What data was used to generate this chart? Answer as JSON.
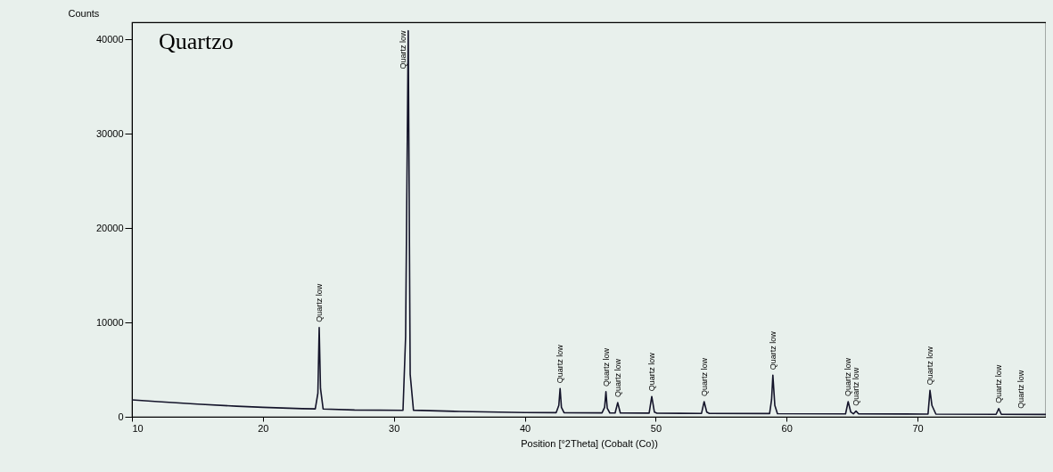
{
  "chart_data": {
    "type": "line",
    "ylabel": "Counts",
    "xlabel": "Position [°2Theta] (Cobalt (Co))",
    "xlim": [
      10,
      79.8
    ],
    "xticks": [
      10,
      20,
      30,
      40,
      50,
      60,
      70
    ],
    "ylim": [
      0,
      41800
    ],
    "yticks": [
      0,
      10000,
      20000,
      30000,
      40000
    ],
    "grid": false,
    "marker": "none",
    "line_style": "solid",
    "series": [
      {
        "color": "#14142a",
        "x": [
          10,
          12,
          15,
          18,
          20,
          23,
          24.0,
          24.2,
          24.3,
          24.4,
          24.6,
          27,
          30.7,
          30.9,
          31.1,
          31.25,
          31.5,
          35,
          40,
          42.4,
          42.6,
          42.7,
          42.8,
          43.0,
          45.9,
          46.1,
          46.2,
          46.3,
          46.5,
          46.9,
          47.1,
          47.3,
          49.5,
          49.7,
          49.9,
          50.1,
          53.5,
          53.7,
          53.9,
          54.1,
          58.7,
          58.85,
          58.95,
          59.1,
          59.3,
          64.5,
          64.7,
          64.9,
          65.1,
          65.3,
          65.5,
          70.8,
          70.95,
          71.1,
          71.4,
          76.0,
          76.2,
          76.4,
          79.8
        ],
        "values": [
          1800,
          1600,
          1350,
          1120,
          1000,
          860,
          840,
          2500,
          9460,
          3000,
          830,
          720,
          680,
          8500,
          40900,
          4500,
          700,
          560,
          450,
          440,
          1200,
          3000,
          1000,
          430,
          410,
          1000,
          2650,
          900,
          400,
          400,
          1500,
          400,
          390,
          2150,
          500,
          380,
          360,
          1600,
          500,
          350,
          340,
          1800,
          4400,
          1200,
          330,
          310,
          1600,
          500,
          310,
          600,
          300,
          290,
          2800,
          1200,
          280,
          260,
          870,
          260,
          250
        ]
      }
    ],
    "annotations": [
      "Quartzo",
      {
        "text": "Quartz low",
        "x": 24.3,
        "y": 9460
      },
      {
        "text": "Quartz low",
        "x": 31.1,
        "y": 40900
      },
      {
        "text": "Quartz low",
        "x": 42.7,
        "y": 3000
      },
      {
        "text": "Quartz low",
        "x": 46.2,
        "y": 2650
      },
      {
        "text": "Quartz low",
        "x": 47.1,
        "y": 1500
      },
      {
        "text": "Quartz low",
        "x": 49.7,
        "y": 2150
      },
      {
        "text": "Quartz low",
        "x": 53.7,
        "y": 1600
      },
      {
        "text": "Quartz low",
        "x": 58.95,
        "y": 4400
      },
      {
        "text": "Quartz low",
        "x": 64.7,
        "y": 1600
      },
      {
        "text": "Quartz low",
        "x": 65.3,
        "y": 600
      },
      {
        "text": "Quartz low",
        "x": 70.95,
        "y": 2800
      },
      {
        "text": "Quartz low",
        "x": 76.2,
        "y": 870
      },
      {
        "text": "Quartz low",
        "x": 77.9,
        "y": 300
      }
    ]
  }
}
